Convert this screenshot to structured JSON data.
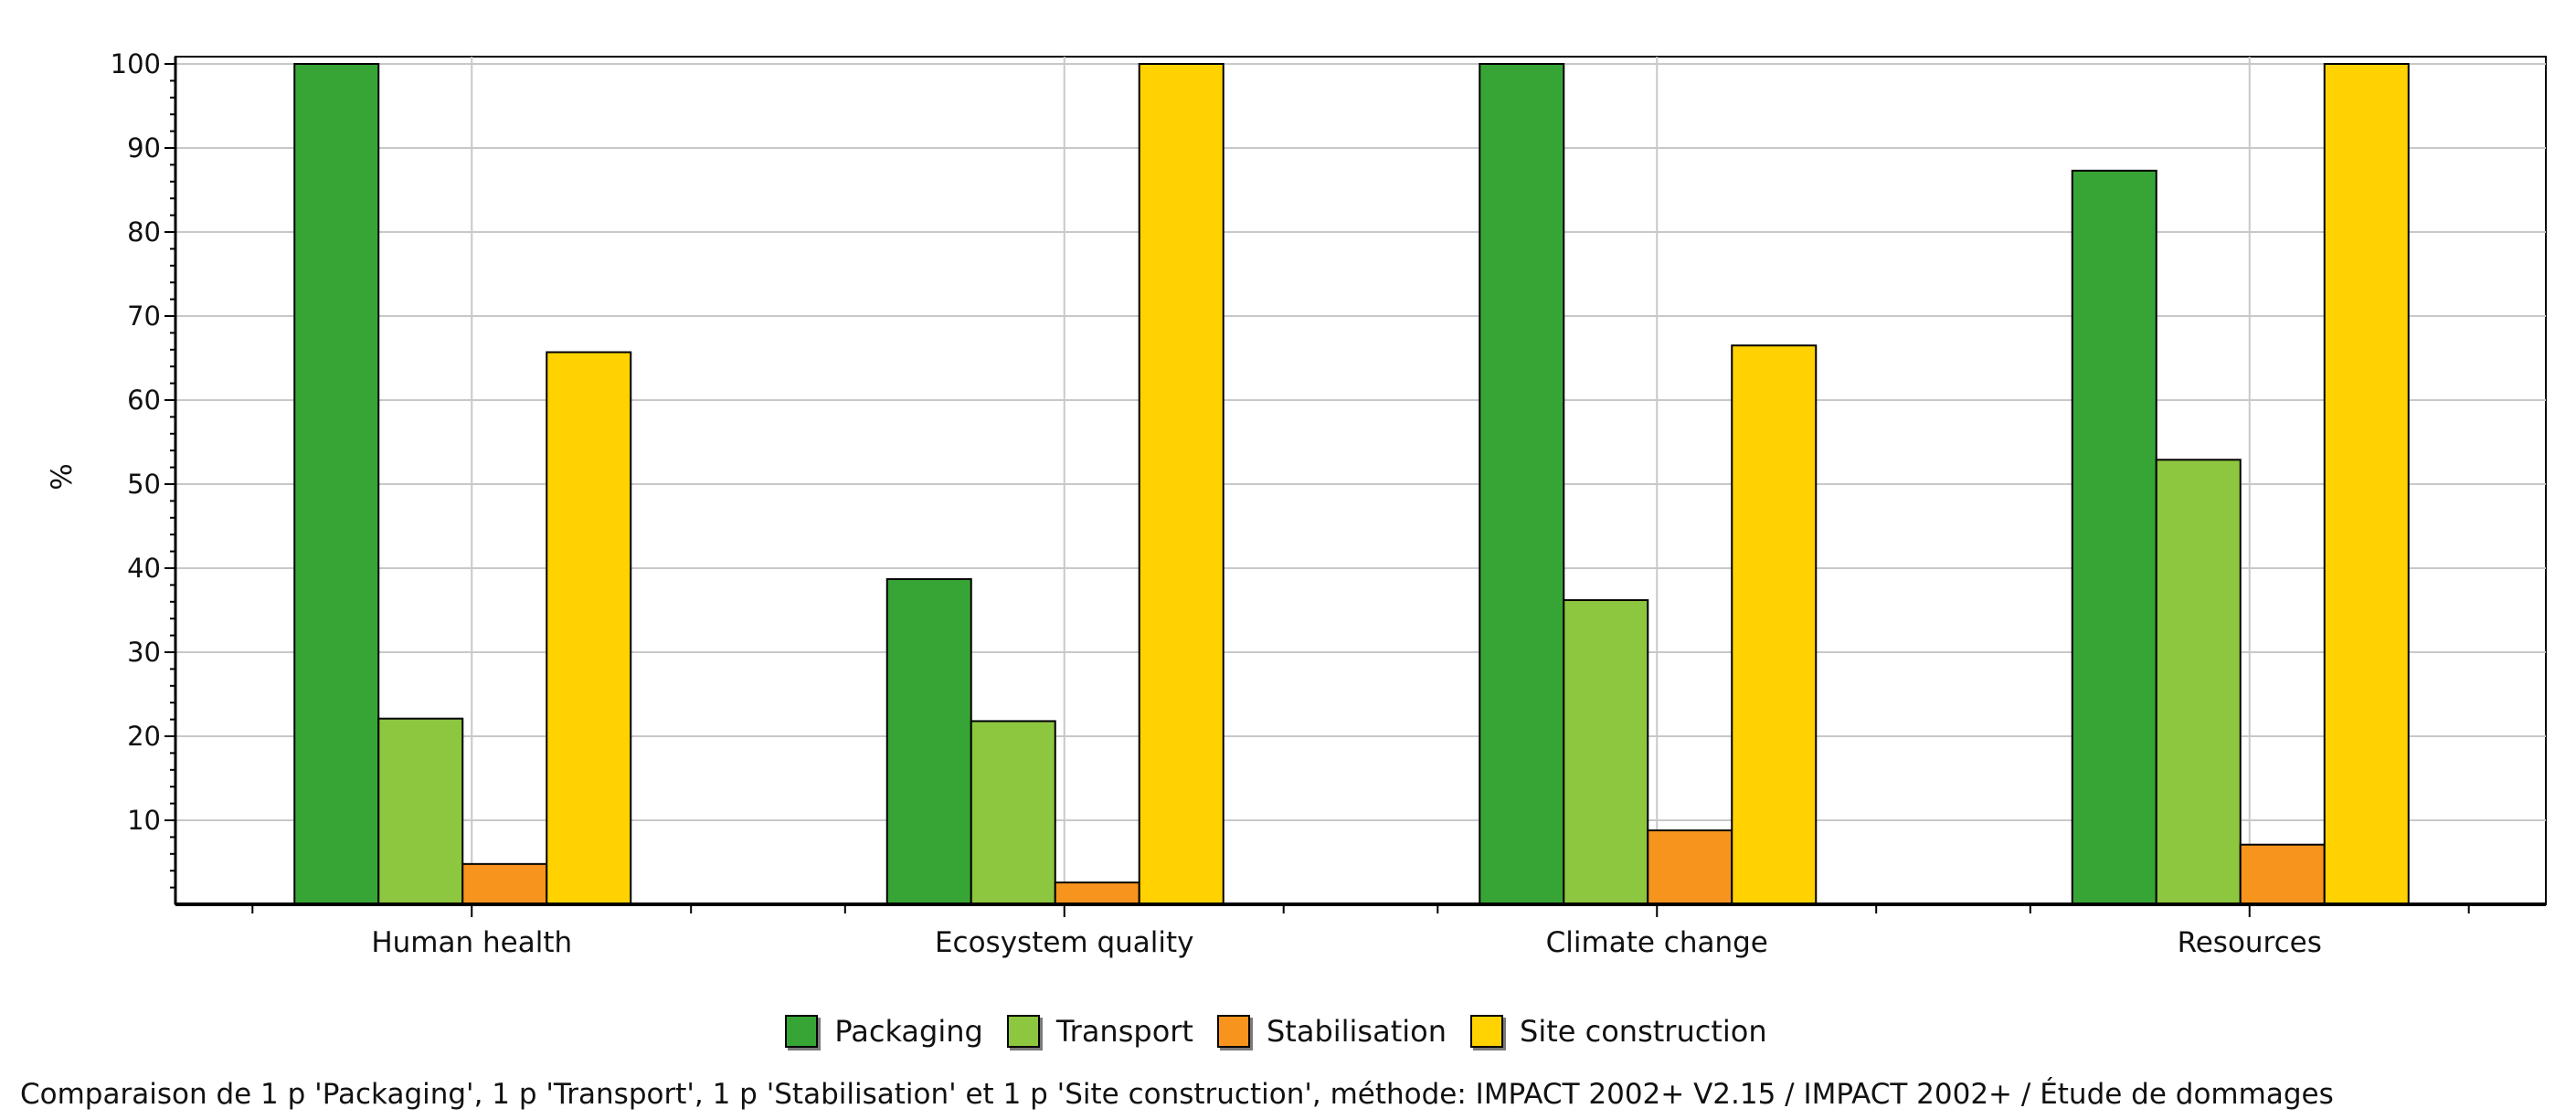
{
  "chart_data": {
    "type": "bar",
    "ylabel": "%",
    "xlabel": "",
    "ylim": [
      0,
      100
    ],
    "yticks": [
      10,
      20,
      30,
      40,
      50,
      60,
      70,
      80,
      90,
      100
    ],
    "grid": true,
    "legend_position": "bottom",
    "categories": [
      "Human health",
      "Ecosystem quality",
      "Climate change",
      "Resources"
    ],
    "series": [
      {
        "name": "Packaging",
        "color": "#37a535",
        "values": [
          100,
          38.7,
          100,
          87.3
        ]
      },
      {
        "name": "Transport",
        "color": "#8dc63f",
        "values": [
          22.1,
          21.8,
          36.2,
          52.9
        ]
      },
      {
        "name": "Stabilisation",
        "color": "#f7941d",
        "values": [
          4.8,
          2.6,
          8.8,
          7.1
        ]
      },
      {
        "name": "Site construction",
        "color": "#ffd200",
        "values": [
          65.7,
          100,
          66.5,
          100
        ]
      }
    ]
  },
  "caption": "Comparaison de 1 p 'Packaging', 1 p 'Transport', 1 p 'Stabilisation' et 1 p 'Site construction', méthode: IMPACT 2002+ V2.15 / IMPACT 2002+ / Étude de dommages"
}
